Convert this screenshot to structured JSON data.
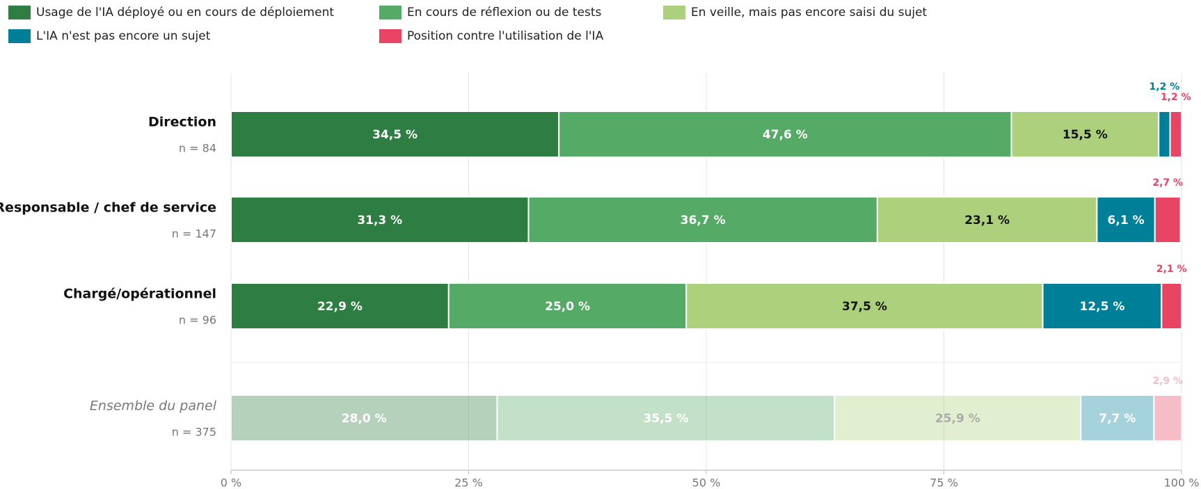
{
  "chart_data": {
    "type": "bar",
    "orientation": "horizontal",
    "stacked": true,
    "categories": [
      "Direction",
      "Responsable / chef de service",
      "Chargé/opérationnel",
      "Ensemble du panel"
    ],
    "category_notes": [
      "n = 84",
      "n = 147",
      "n = 96",
      "n = 375"
    ],
    "series": [
      {
        "name": "Usage de l'IA déployé ou en cours de déploiement",
        "color": "#2e7d43",
        "values": [
          34.5,
          31.3,
          22.9,
          28.0
        ],
        "value_labels": [
          "34,5 %",
          "31,3 %",
          "22,9 %",
          "28,0 %"
        ]
      },
      {
        "name": "En cours de réflexion ou de tests",
        "color": "#55ab66",
        "values": [
          47.6,
          36.7,
          25.0,
          35.5
        ],
        "value_labels": [
          "47,6 %",
          "36,7 %",
          "25,0 %",
          "35,5 %"
        ]
      },
      {
        "name": "En veille, mais pas encore saisi du sujet",
        "color": "#acd07b",
        "values": [
          15.5,
          23.1,
          37.5,
          25.9
        ],
        "value_labels": [
          "15,5 %",
          "23,1 %",
          "37,5 %",
          "25,9 %"
        ]
      },
      {
        "name": "L'IA n'est pas encore un sujet",
        "color": "#007f99",
        "values": [
          1.2,
          6.1,
          12.5,
          7.7
        ],
        "value_labels": [
          "1,2 %",
          "6,1 %",
          "12,5 %",
          "7,7 %"
        ]
      },
      {
        "name": "Position contre l'utilisation de l'IA",
        "color": "#e84565",
        "values": [
          1.2,
          2.7,
          2.1,
          2.9
        ],
        "value_labels": [
          "1,2 %",
          "2,7 %",
          "2,1 %",
          "2,9 %"
        ]
      }
    ],
    "xlim": [
      0,
      100
    ],
    "xticks": [
      {
        "value": 0,
        "label": "0 %"
      },
      {
        "value": 25,
        "label": "25 %"
      },
      {
        "value": 50,
        "label": "50 %"
      },
      {
        "value": 75,
        "label": "75 %"
      },
      {
        "value": 100,
        "label": "100 %"
      }
    ],
    "grid": true
  }
}
